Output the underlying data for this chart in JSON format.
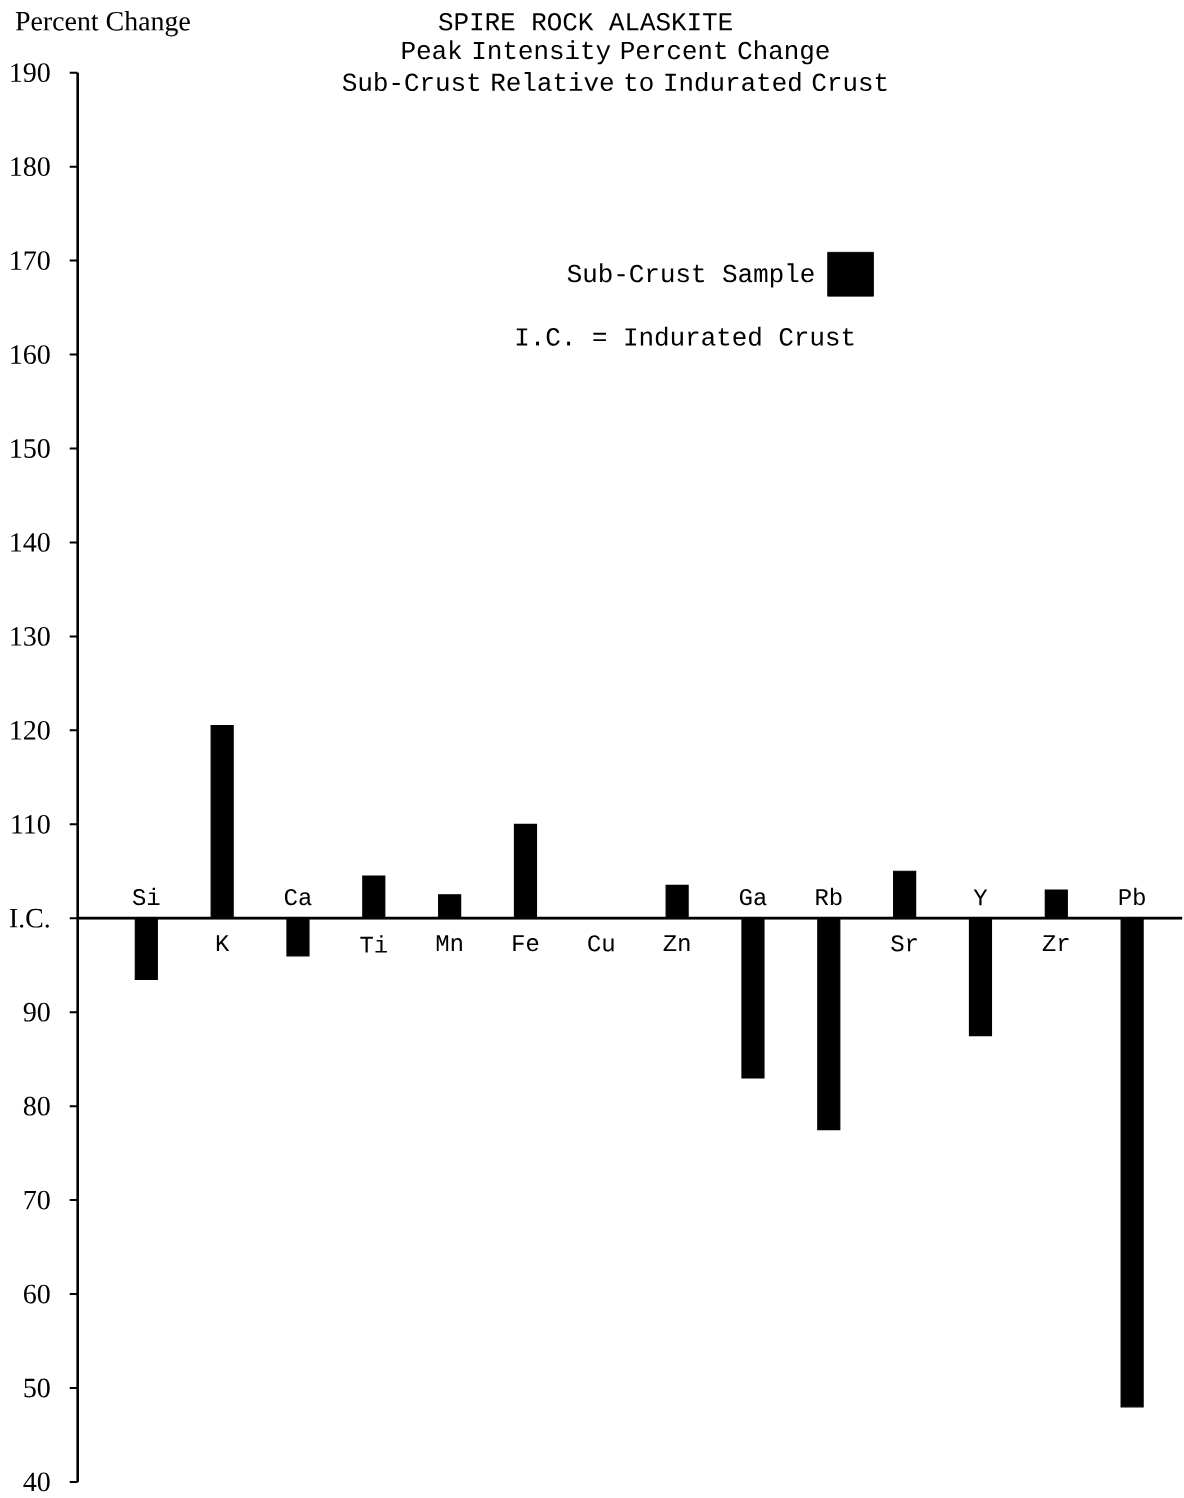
{
  "chart_data": {
    "type": "bar",
    "title": "SPIRE ROCK ALASKITE",
    "subtitle": "Peak Intensity Percent Change Sub-Crust Relative to Indurated Crust",
    "ylabel": "Percent Change",
    "categories": [
      "Si",
      "K",
      "Ca",
      "Ti",
      "Mn",
      "Fe",
      "Cu",
      "Zn",
      "Ga",
      "Rb",
      "Sr",
      "Y",
      "Zr",
      "Pb"
    ],
    "series": [
      {
        "name": "Sub-Crust Sample",
        "color": "#000000",
        "base": [
          100,
          100,
          100,
          100,
          100,
          100,
          null,
          100,
          100,
          100,
          100,
          100,
          100,
          100
        ],
        "values": [
          -6.5,
          20.5,
          -4,
          4.5,
          2.5,
          10,
          null,
          3.5,
          -17,
          -22.5,
          5,
          -12.5,
          3,
          -52
        ]
      }
    ],
    "ylim": [
      40,
      190
    ],
    "yticks": [
      40,
      50,
      60,
      70,
      80,
      90,
      {
        "value": 100,
        "label": "I.C."
      },
      110,
      120,
      130,
      140,
      150,
      160,
      170,
      180,
      190
    ],
    "annotations": [
      "I.C. = Indurated Crust"
    ],
    "legend": "top right"
  }
}
